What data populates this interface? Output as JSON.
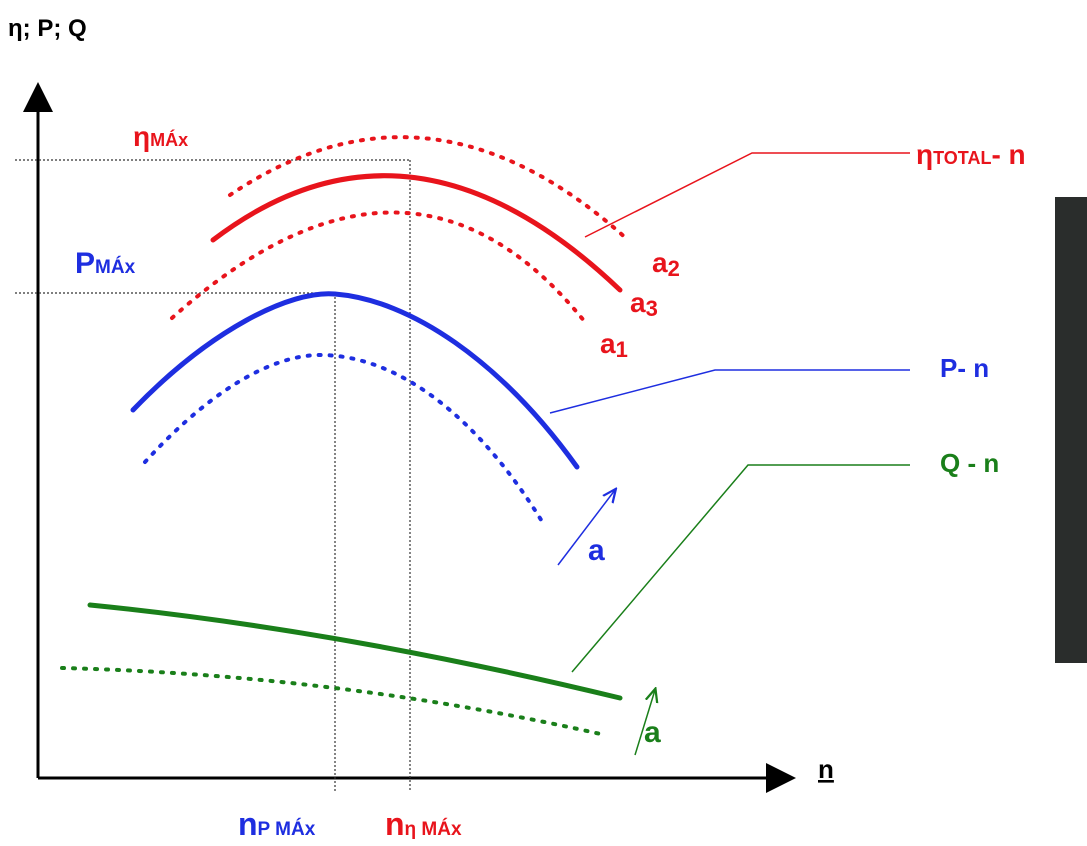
{
  "axes": {
    "y_label": "η; P; Q",
    "x_label": "n"
  },
  "efficiency": {
    "max_label": {
      "symbol": "η",
      "sub": "MÁx"
    },
    "curve_label": {
      "symbol": "η",
      "sub": "TOTAL",
      "suffix": "- n"
    },
    "variants": [
      {
        "main": "a",
        "sub": "2"
      },
      {
        "main": "a",
        "sub": "3"
      },
      {
        "main": "a",
        "sub": "1"
      }
    ],
    "n_label": {
      "symbol": "n",
      "sub": "η MÁx"
    }
  },
  "power": {
    "max_label": {
      "symbol": "P",
      "sub": "MÁx"
    },
    "curve_label": "P- n",
    "arrow_label": "a",
    "n_label": {
      "symbol": "n",
      "sub": "P MÁx"
    }
  },
  "flow": {
    "curve_label": "Q - n",
    "arrow_label": "a"
  }
}
